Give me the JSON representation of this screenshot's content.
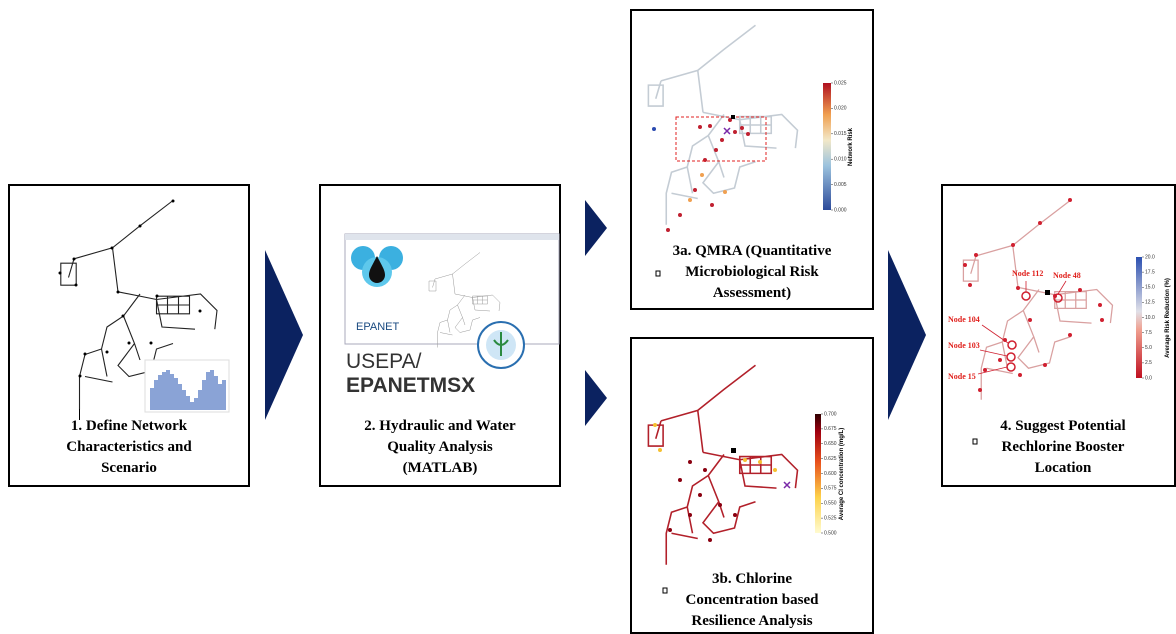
{
  "steps": [
    {
      "caption": [
        "1. Define Network",
        "Characteristics and",
        "Scenario"
      ]
    },
    {
      "caption": [
        "2. Hydraulic and Water",
        "Quality Analysis",
        "(MATLAB)"
      ],
      "logos": [
        "EPANET",
        "USEPA/",
        "EPANETMSX"
      ]
    },
    {
      "caption": [
        "3a. QMRA (Quantitative",
        "Microbiological Risk",
        "Assessment)"
      ],
      "colorbar_label": "Network Risk",
      "colorbar_ticks": [
        "0.025",
        "0.020",
        "0.015",
        "0.010",
        "0.005",
        "0.000"
      ]
    },
    {
      "caption": [
        "3b. Chlorine",
        "Concentration based",
        "Resilience Analysis"
      ],
      "colorbar_label": "Average Cl concentration (mg/L)",
      "colorbar_ticks": [
        "0.700",
        "0.675",
        "0.650",
        "0.625",
        "0.600",
        "0.575",
        "0.550",
        "0.525",
        "0.500"
      ]
    },
    {
      "caption": [
        "4. Suggest Potential",
        "Rechlorine Booster",
        "Location"
      ],
      "colorbar_label": "Average Risk Reduction (%)",
      "colorbar_ticks": [
        "20.0",
        "17.5",
        "15.0",
        "12.5",
        "10.0",
        "7.5",
        "5.0",
        "2.5",
        "0.0"
      ],
      "node_labels": [
        "Node 112",
        "Node 48",
        "Node 104",
        "Node 103",
        "Node 15"
      ]
    }
  ]
}
